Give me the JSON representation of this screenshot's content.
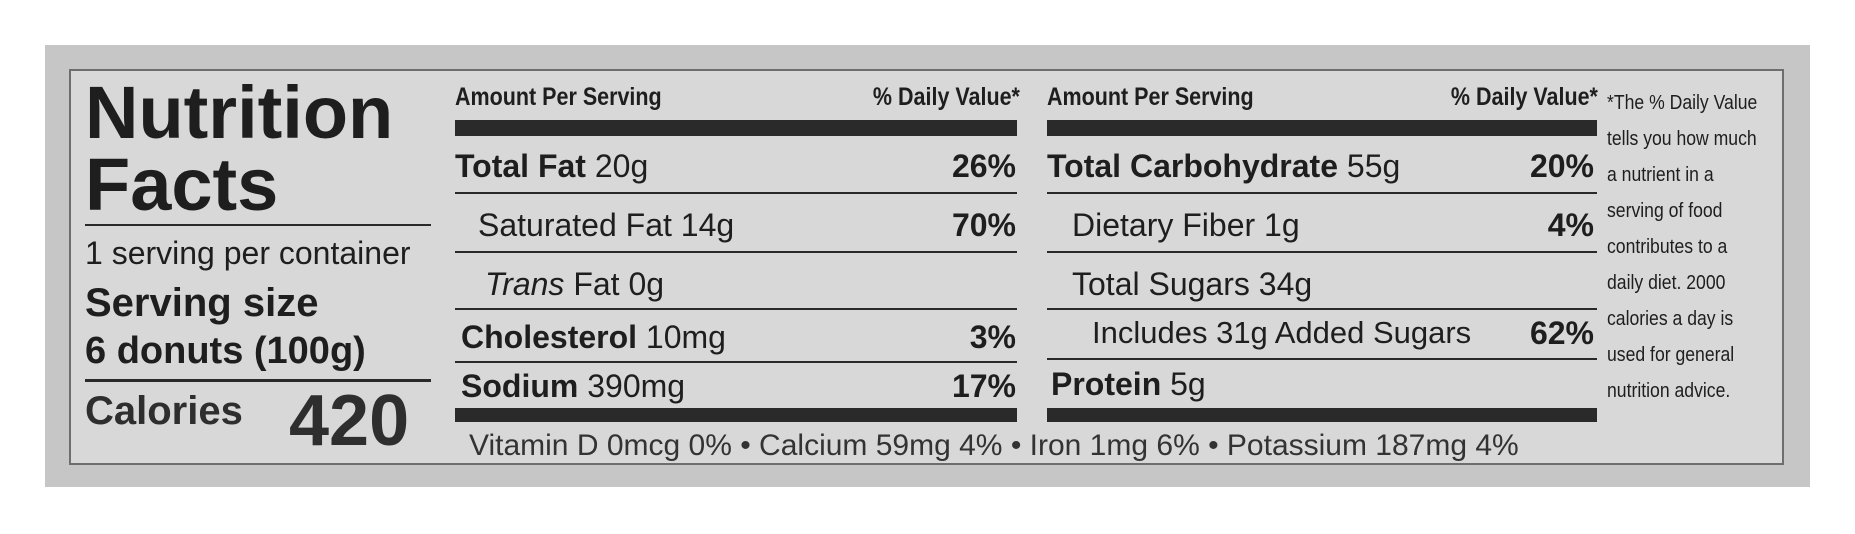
{
  "header": {
    "title_line1": "Nutrition",
    "title_line2": "Facts",
    "servings": "1 serving per container",
    "serving_size_label": "Serving size",
    "serving_size_value": "6 donuts (100g)",
    "calories_label": "Calories",
    "calories_value": "420"
  },
  "left_panel": {
    "col_amount": "Amount Per Serving",
    "col_dv": "% Daily Value*",
    "rows": [
      {
        "name": "Total Fat",
        "amount": "20g",
        "dv": "26%"
      },
      {
        "name": "Saturated Fat",
        "amount": "14g",
        "dv": "70%"
      },
      {
        "prefix": "Trans",
        "name": "Fat",
        "amount": "0g"
      },
      {
        "name": "Cholesterol",
        "amount": "10mg",
        "dv": "3%"
      },
      {
        "name": "Sodium",
        "amount": "390mg",
        "dv": "17%"
      }
    ]
  },
  "right_panel": {
    "col_amount": "Amount Per Serving",
    "col_dv": "% Daily Value*",
    "rows": [
      {
        "name": "Total Carbohydrate",
        "amount": "55g",
        "dv": "20%"
      },
      {
        "name": "Dietary Fiber",
        "amount": "1g",
        "dv": "4%"
      },
      {
        "name": "Total Sugars",
        "amount": "34g"
      },
      {
        "name": "Includes 31g Added Sugars",
        "dv": "62%"
      },
      {
        "name": "Protein",
        "amount": "5g"
      }
    ]
  },
  "footer": "Vitamin D 0mcg 0% • Calcium 59mg 4% • Iron 1mg 6% • Potassium 187mg 4%",
  "footnote": "*The % Daily Value tells you how much a nutrient in a serving of food contributes to a daily diet. 2000 calories a day is used for general nutrition advice."
}
